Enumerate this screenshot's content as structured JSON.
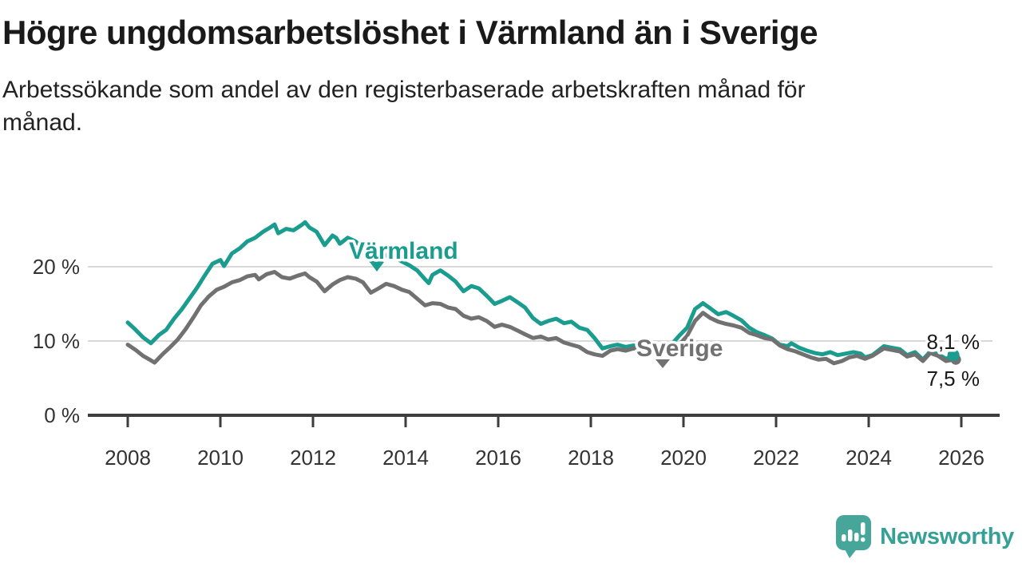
{
  "header": {
    "title": "Högre ungdomsarbetslöshet i Värmland än i Sverige",
    "subtitle_line1": "Arbetssökande som andel av den registerbaserade arbetskraften månad för",
    "subtitle_line2": "månad."
  },
  "footer": {
    "brand": "Newsworthy",
    "logo_icon": "bar-chart-speech-bubble-icon"
  },
  "colors": {
    "varmland": "#1a9c8e",
    "sverige": "#717171",
    "grid": "#d9d9d9",
    "axis": "#3d3d3d",
    "tick_label": "#333333",
    "value_label": "#1a1a1a",
    "brand_teal": "#35a096",
    "brand_icon": "#47a69a",
    "background": "#ffffff"
  },
  "chart_data": {
    "type": "line",
    "title": "Högre ungdomsarbetslöshet i Värmland än i Sverige",
    "subtitle": "Arbetssökande som andel av den registerbaserade arbetskraften månad för månad.",
    "unit": "%",
    "grid": "horizontal",
    "legend_position": "inline-labels",
    "x_axis": {
      "ticks": [
        2008,
        2010,
        2012,
        2014,
        2016,
        2018,
        2020,
        2022,
        2024,
        2026
      ],
      "range": [
        2008,
        2026.8
      ]
    },
    "y_axis": {
      "ticks": [
        {
          "value": 0,
          "label": "0 %"
        },
        {
          "value": 10,
          "label": "10 %"
        },
        {
          "value": 20,
          "label": "20 %"
        }
      ],
      "range": [
        0,
        28
      ]
    },
    "series": [
      {
        "name": "Värmland",
        "color": "#1a9c8e",
        "end_label": "8,1 %",
        "end_value": 8.1,
        "points": [
          [
            2008.0,
            12.5
          ],
          [
            2008.17,
            11.5
          ],
          [
            2008.33,
            10.5
          ],
          [
            2008.5,
            9.7
          ],
          [
            2008.67,
            10.8
          ],
          [
            2008.83,
            11.5
          ],
          [
            2009.0,
            13.0
          ],
          [
            2009.17,
            14.3
          ],
          [
            2009.33,
            15.7
          ],
          [
            2009.5,
            17.2
          ],
          [
            2009.67,
            18.9
          ],
          [
            2009.83,
            20.4
          ],
          [
            2010.0,
            20.9
          ],
          [
            2010.08,
            20.1
          ],
          [
            2010.25,
            21.8
          ],
          [
            2010.42,
            22.5
          ],
          [
            2010.58,
            23.4
          ],
          [
            2010.75,
            23.9
          ],
          [
            2010.92,
            24.7
          ],
          [
            2011.08,
            25.3
          ],
          [
            2011.17,
            25.7
          ],
          [
            2011.25,
            24.5
          ],
          [
            2011.42,
            25.1
          ],
          [
            2011.58,
            24.9
          ],
          [
            2011.75,
            25.6
          ],
          [
            2011.83,
            26.0
          ],
          [
            2011.92,
            25.3
          ],
          [
            2012.08,
            24.7
          ],
          [
            2012.25,
            22.9
          ],
          [
            2012.42,
            24.2
          ],
          [
            2012.5,
            23.9
          ],
          [
            2012.58,
            23.1
          ],
          [
            2012.75,
            23.9
          ],
          [
            2012.92,
            23.4
          ],
          [
            2013.08,
            22.4
          ],
          [
            2013.25,
            20.8
          ],
          [
            2013.42,
            20.4
          ],
          [
            2013.58,
            21.6
          ],
          [
            2013.75,
            21.3
          ],
          [
            2013.92,
            20.7
          ],
          [
            2014.08,
            20.2
          ],
          [
            2014.25,
            19.5
          ],
          [
            2014.42,
            18.3
          ],
          [
            2014.5,
            17.8
          ],
          [
            2014.58,
            18.9
          ],
          [
            2014.75,
            19.5
          ],
          [
            2014.92,
            18.8
          ],
          [
            2015.08,
            18.0
          ],
          [
            2015.25,
            16.7
          ],
          [
            2015.42,
            17.4
          ],
          [
            2015.58,
            17.1
          ],
          [
            2015.75,
            16.1
          ],
          [
            2015.92,
            15.0
          ],
          [
            2016.08,
            15.4
          ],
          [
            2016.25,
            15.9
          ],
          [
            2016.42,
            15.2
          ],
          [
            2016.58,
            14.5
          ],
          [
            2016.75,
            13.1
          ],
          [
            2016.92,
            12.3
          ],
          [
            2017.08,
            12.7
          ],
          [
            2017.25,
            13.0
          ],
          [
            2017.42,
            12.4
          ],
          [
            2017.58,
            12.6
          ],
          [
            2017.75,
            11.8
          ],
          [
            2017.92,
            11.5
          ],
          [
            2018.08,
            10.4
          ],
          [
            2018.25,
            9.0
          ],
          [
            2018.42,
            9.3
          ],
          [
            2018.58,
            9.5
          ],
          [
            2018.75,
            9.2
          ],
          [
            2018.92,
            9.4
          ],
          [
            2019.08,
            9.2
          ],
          [
            2019.25,
            9.4
          ],
          [
            2019.42,
            9.1
          ],
          [
            2019.58,
            9.5
          ],
          [
            2019.75,
            9.6
          ],
          [
            2019.92,
            10.8
          ],
          [
            2020.08,
            11.8
          ],
          [
            2020.25,
            14.3
          ],
          [
            2020.42,
            15.1
          ],
          [
            2020.58,
            14.4
          ],
          [
            2020.75,
            13.6
          ],
          [
            2020.92,
            13.9
          ],
          [
            2021.08,
            13.4
          ],
          [
            2021.25,
            12.8
          ],
          [
            2021.42,
            11.8
          ],
          [
            2021.58,
            11.2
          ],
          [
            2021.75,
            10.8
          ],
          [
            2021.92,
            10.3
          ],
          [
            2022.08,
            9.5
          ],
          [
            2022.25,
            9.3
          ],
          [
            2022.33,
            9.7
          ],
          [
            2022.5,
            9.1
          ],
          [
            2022.67,
            8.7
          ],
          [
            2022.83,
            8.4
          ],
          [
            2023.0,
            8.2
          ],
          [
            2023.17,
            8.5
          ],
          [
            2023.33,
            8.1
          ],
          [
            2023.5,
            8.3
          ],
          [
            2023.67,
            8.5
          ],
          [
            2023.83,
            8.3
          ],
          [
            2023.92,
            7.8
          ],
          [
            2024.08,
            8.1
          ],
          [
            2024.33,
            9.3
          ],
          [
            2024.5,
            9.1
          ],
          [
            2024.67,
            8.9
          ],
          [
            2024.83,
            8.1
          ],
          [
            2025.0,
            8.5
          ],
          [
            2025.17,
            7.5
          ],
          [
            2025.33,
            8.6
          ],
          [
            2025.5,
            8.2
          ],
          [
            2025.67,
            7.6
          ],
          [
            2025.83,
            8.1
          ]
        ]
      },
      {
        "name": "Sverige",
        "color": "#717171",
        "end_label": "7,5 %",
        "end_value": 7.5,
        "points": [
          [
            2008.0,
            9.5
          ],
          [
            2008.17,
            8.8
          ],
          [
            2008.33,
            8.0
          ],
          [
            2008.5,
            7.4
          ],
          [
            2008.58,
            7.1
          ],
          [
            2008.75,
            8.2
          ],
          [
            2008.92,
            9.2
          ],
          [
            2009.08,
            10.2
          ],
          [
            2009.25,
            11.6
          ],
          [
            2009.42,
            13.2
          ],
          [
            2009.58,
            14.8
          ],
          [
            2009.75,
            16.0
          ],
          [
            2009.92,
            16.9
          ],
          [
            2010.08,
            17.3
          ],
          [
            2010.25,
            17.9
          ],
          [
            2010.42,
            18.2
          ],
          [
            2010.58,
            18.7
          ],
          [
            2010.75,
            18.9
          ],
          [
            2010.83,
            18.3
          ],
          [
            2011.0,
            19.0
          ],
          [
            2011.17,
            19.3
          ],
          [
            2011.33,
            18.6
          ],
          [
            2011.5,
            18.4
          ],
          [
            2011.67,
            18.8
          ],
          [
            2011.83,
            19.1
          ],
          [
            2011.92,
            18.6
          ],
          [
            2012.08,
            18.0
          ],
          [
            2012.25,
            16.7
          ],
          [
            2012.42,
            17.6
          ],
          [
            2012.58,
            18.2
          ],
          [
            2012.75,
            18.6
          ],
          [
            2012.92,
            18.4
          ],
          [
            2013.08,
            17.9
          ],
          [
            2013.25,
            16.5
          ],
          [
            2013.42,
            17.1
          ],
          [
            2013.58,
            17.7
          ],
          [
            2013.75,
            17.4
          ],
          [
            2013.92,
            16.9
          ],
          [
            2014.08,
            16.6
          ],
          [
            2014.25,
            15.7
          ],
          [
            2014.42,
            14.8
          ],
          [
            2014.58,
            15.1
          ],
          [
            2014.75,
            15.0
          ],
          [
            2014.92,
            14.5
          ],
          [
            2015.08,
            14.3
          ],
          [
            2015.25,
            13.4
          ],
          [
            2015.42,
            13.0
          ],
          [
            2015.58,
            13.2
          ],
          [
            2015.75,
            12.7
          ],
          [
            2015.92,
            11.9
          ],
          [
            2016.08,
            12.2
          ],
          [
            2016.25,
            11.9
          ],
          [
            2016.42,
            11.4
          ],
          [
            2016.58,
            10.9
          ],
          [
            2016.75,
            10.4
          ],
          [
            2016.92,
            10.6
          ],
          [
            2017.08,
            10.2
          ],
          [
            2017.25,
            10.4
          ],
          [
            2017.42,
            9.8
          ],
          [
            2017.58,
            9.5
          ],
          [
            2017.75,
            9.2
          ],
          [
            2017.92,
            8.5
          ],
          [
            2018.08,
            8.2
          ],
          [
            2018.25,
            8.0
          ],
          [
            2018.42,
            8.7
          ],
          [
            2018.58,
            8.9
          ],
          [
            2018.75,
            8.7
          ],
          [
            2018.92,
            9.0
          ],
          [
            2019.08,
            8.9
          ],
          [
            2019.25,
            8.8
          ],
          [
            2019.42,
            9.0
          ],
          [
            2019.58,
            8.9
          ],
          [
            2019.75,
            9.1
          ],
          [
            2019.92,
            9.6
          ],
          [
            2020.08,
            10.7
          ],
          [
            2020.25,
            12.7
          ],
          [
            2020.42,
            13.8
          ],
          [
            2020.58,
            13.1
          ],
          [
            2020.75,
            12.6
          ],
          [
            2020.92,
            12.3
          ],
          [
            2021.08,
            12.1
          ],
          [
            2021.25,
            11.8
          ],
          [
            2021.42,
            11.1
          ],
          [
            2021.58,
            10.8
          ],
          [
            2021.75,
            10.4
          ],
          [
            2021.92,
            10.2
          ],
          [
            2022.08,
            9.4
          ],
          [
            2022.25,
            8.9
          ],
          [
            2022.42,
            8.6
          ],
          [
            2022.58,
            8.2
          ],
          [
            2022.75,
            7.8
          ],
          [
            2022.92,
            7.5
          ],
          [
            2023.08,
            7.6
          ],
          [
            2023.25,
            7.0
          ],
          [
            2023.42,
            7.3
          ],
          [
            2023.58,
            7.8
          ],
          [
            2023.75,
            8.0
          ],
          [
            2023.92,
            7.6
          ],
          [
            2024.08,
            8.0
          ],
          [
            2024.33,
            9.0
          ],
          [
            2024.5,
            8.8
          ],
          [
            2024.67,
            8.6
          ],
          [
            2024.83,
            7.9
          ],
          [
            2025.0,
            8.2
          ],
          [
            2025.17,
            7.3
          ],
          [
            2025.33,
            8.4
          ],
          [
            2025.5,
            8.0
          ],
          [
            2025.67,
            7.3
          ],
          [
            2025.83,
            7.5
          ]
        ]
      }
    ]
  }
}
